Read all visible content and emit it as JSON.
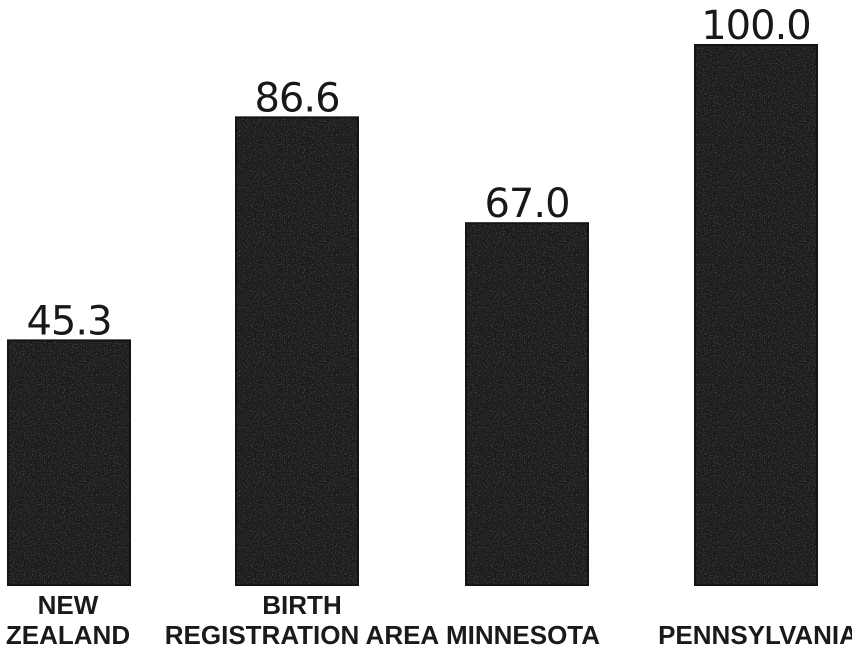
{
  "chart_data": {
    "type": "bar",
    "categories": [
      [
        "NEW",
        "ZEALAND"
      ],
      [
        "BIRTH",
        "REGISTRATION AREA"
      ],
      [
        "MINNESOTA"
      ],
      [
        "PENNSYLVANIA"
      ]
    ],
    "values": [
      45.3,
      86.6,
      67.0,
      100.0
    ],
    "value_labels": [
      "45.3",
      "86.6",
      "67.0",
      "100.0"
    ],
    "title": "",
    "xlabel": "",
    "ylabel": "",
    "ylim": [
      0,
      100
    ],
    "grid": false,
    "bar_color": "#1c1c1c"
  }
}
